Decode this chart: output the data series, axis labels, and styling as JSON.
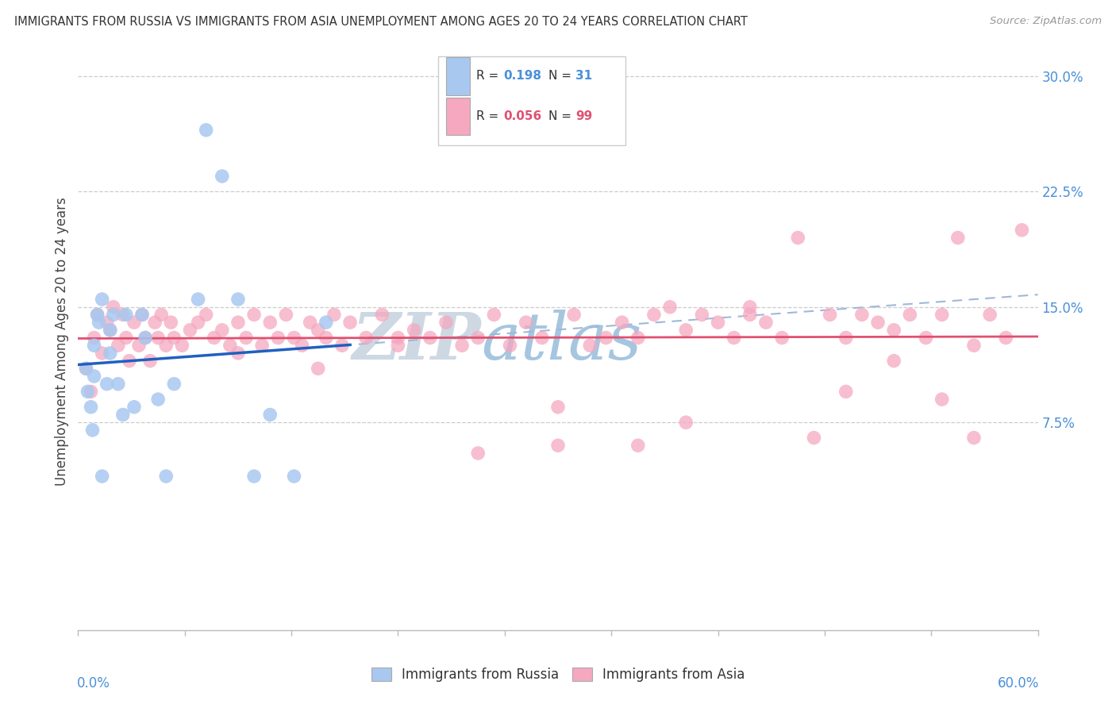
{
  "title": "IMMIGRANTS FROM RUSSIA VS IMMIGRANTS FROM ASIA UNEMPLOYMENT AMONG AGES 20 TO 24 YEARS CORRELATION CHART",
  "source": "Source: ZipAtlas.com",
  "ylabel": "Unemployment Among Ages 20 to 24 years",
  "y_ticks": [
    0.075,
    0.15,
    0.225,
    0.3
  ],
  "y_tick_labels": [
    "7.5%",
    "15.0%",
    "22.5%",
    "30.0%"
  ],
  "x_lim": [
    0.0,
    0.6
  ],
  "y_lim": [
    -0.06,
    0.315
  ],
  "russia_color": "#a8c8f0",
  "asia_color": "#f5a8c0",
  "russia_line_color": "#2060c0",
  "asia_line_color": "#e05070",
  "trend_dash_color": "#a0b8d8",
  "background_color": "#ffffff",
  "legend_color_russia": "#a8c8f0",
  "legend_color_asia": "#f5a8c0",
  "russia_x": [
    0.005,
    0.006,
    0.008,
    0.009,
    0.01,
    0.01,
    0.012,
    0.013,
    0.015,
    0.015,
    0.018,
    0.02,
    0.02,
    0.022,
    0.025,
    0.028,
    0.03,
    0.035,
    0.04,
    0.042,
    0.05,
    0.055,
    0.06,
    0.075,
    0.08,
    0.09,
    0.1,
    0.11,
    0.12,
    0.135,
    0.155
  ],
  "russia_y": [
    0.11,
    0.095,
    0.085,
    0.07,
    0.125,
    0.105,
    0.145,
    0.14,
    0.155,
    0.04,
    0.1,
    0.135,
    0.12,
    0.145,
    0.1,
    0.08,
    0.145,
    0.085,
    0.145,
    0.13,
    0.09,
    0.04,
    0.1,
    0.155,
    0.265,
    0.235,
    0.155,
    0.04,
    0.08,
    0.04,
    0.14
  ],
  "asia_x": [
    0.005,
    0.008,
    0.01,
    0.012,
    0.015,
    0.018,
    0.02,
    0.022,
    0.025,
    0.028,
    0.03,
    0.032,
    0.035,
    0.038,
    0.04,
    0.042,
    0.045,
    0.048,
    0.05,
    0.052,
    0.055,
    0.058,
    0.06,
    0.065,
    0.07,
    0.075,
    0.08,
    0.085,
    0.09,
    0.095,
    0.1,
    0.105,
    0.11,
    0.115,
    0.12,
    0.125,
    0.13,
    0.135,
    0.14,
    0.145,
    0.15,
    0.155,
    0.16,
    0.165,
    0.17,
    0.18,
    0.19,
    0.2,
    0.21,
    0.22,
    0.23,
    0.24,
    0.25,
    0.26,
    0.27,
    0.28,
    0.29,
    0.3,
    0.31,
    0.32,
    0.33,
    0.34,
    0.35,
    0.36,
    0.37,
    0.38,
    0.39,
    0.4,
    0.41,
    0.42,
    0.43,
    0.44,
    0.45,
    0.46,
    0.47,
    0.48,
    0.49,
    0.5,
    0.51,
    0.52,
    0.53,
    0.54,
    0.55,
    0.56,
    0.57,
    0.58,
    0.59,
    0.48,
    0.51,
    0.54,
    0.56,
    0.42,
    0.38,
    0.35,
    0.3,
    0.25,
    0.2,
    0.15,
    0.1
  ],
  "asia_y": [
    0.11,
    0.095,
    0.13,
    0.145,
    0.12,
    0.14,
    0.135,
    0.15,
    0.125,
    0.145,
    0.13,
    0.115,
    0.14,
    0.125,
    0.145,
    0.13,
    0.115,
    0.14,
    0.13,
    0.145,
    0.125,
    0.14,
    0.13,
    0.125,
    0.135,
    0.14,
    0.145,
    0.13,
    0.135,
    0.125,
    0.14,
    0.13,
    0.145,
    0.125,
    0.14,
    0.13,
    0.145,
    0.13,
    0.125,
    0.14,
    0.135,
    0.13,
    0.145,
    0.125,
    0.14,
    0.13,
    0.145,
    0.125,
    0.135,
    0.13,
    0.14,
    0.125,
    0.13,
    0.145,
    0.125,
    0.14,
    0.13,
    0.06,
    0.145,
    0.125,
    0.13,
    0.14,
    0.13,
    0.145,
    0.15,
    0.135,
    0.145,
    0.14,
    0.13,
    0.145,
    0.14,
    0.13,
    0.195,
    0.065,
    0.145,
    0.13,
    0.145,
    0.14,
    0.135,
    0.145,
    0.13,
    0.145,
    0.195,
    0.065,
    0.145,
    0.13,
    0.2,
    0.095,
    0.115,
    0.09,
    0.125,
    0.15,
    0.075,
    0.06,
    0.085,
    0.055,
    0.13,
    0.11,
    0.12
  ]
}
